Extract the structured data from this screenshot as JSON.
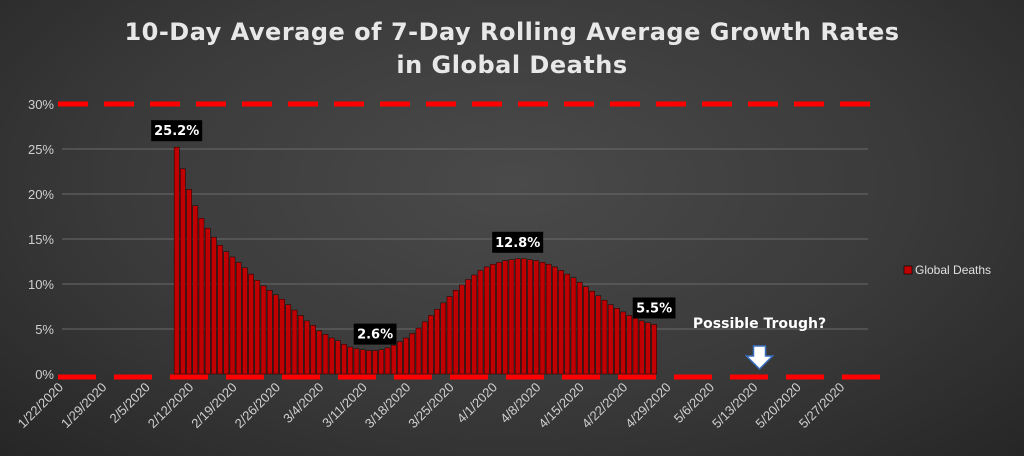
{
  "chart_data": {
    "type": "bar",
    "title_line1": "10-Day Average of 7-Day Rolling Average Growth Rates",
    "title_line2": "in Global Deaths",
    "xlabel": "",
    "ylabel": "",
    "ylim": [
      0,
      30
    ],
    "yticks": [
      "0%",
      "5%",
      "10%",
      "15%",
      "20%",
      "25%",
      "30%"
    ],
    "xticks": [
      "1/22/2020",
      "1/29/2020",
      "2/5/2020",
      "2/12/2020",
      "2/19/2020",
      "2/26/2020",
      "3/4/2020",
      "3/11/2020",
      "3/18/2020",
      "3/25/2020",
      "4/1/2020",
      "4/8/2020",
      "4/15/2020",
      "4/22/2020",
      "4/29/2020",
      "5/6/2020",
      "5/13/2020",
      "5/20/2020",
      "5/27/2020"
    ],
    "grid": true,
    "legend_position": "right",
    "series": [
      {
        "name": "Global Deaths",
        "color": "#c00000",
        "start_date": "2/9/2020",
        "values": [
          25.2,
          22.8,
          20.5,
          18.7,
          17.3,
          16.2,
          15.2,
          14.3,
          13.6,
          13.0,
          12.4,
          11.8,
          11.1,
          10.4,
          9.8,
          9.3,
          8.8,
          8.3,
          7.7,
          7.1,
          6.5,
          5.9,
          5.4,
          4.8,
          4.4,
          4.0,
          3.7,
          3.3,
          3.0,
          2.8,
          2.7,
          2.6,
          2.6,
          2.7,
          2.9,
          3.2,
          3.6,
          4.0,
          4.5,
          5.1,
          5.8,
          6.5,
          7.2,
          7.9,
          8.6,
          9.3,
          9.9,
          10.5,
          11.0,
          11.5,
          11.9,
          12.2,
          12.4,
          12.6,
          12.7,
          12.8,
          12.8,
          12.7,
          12.6,
          12.4,
          12.2,
          11.9,
          11.5,
          11.1,
          10.7,
          10.2,
          9.7,
          9.2,
          8.7,
          8.2,
          7.7,
          7.3,
          6.9,
          6.5,
          6.2,
          5.9,
          5.7,
          5.5
        ]
      }
    ],
    "data_labels": [
      {
        "text": "25.2%",
        "date": "2/9/2020",
        "value": 25.2
      },
      {
        "text": "2.6%",
        "date": "3/12/2020",
        "value": 2.6
      },
      {
        "text": "12.8%",
        "date": "4/4/2020",
        "value": 12.8
      },
      {
        "text": "5.5%",
        "date": "4/26/2020",
        "value": 5.5
      }
    ],
    "reference_lines": [
      {
        "value": 30,
        "color": "#ff0000",
        "style": "dashed"
      },
      {
        "value": 0,
        "color": "#ff0000",
        "style": "dashed"
      }
    ],
    "annotation": {
      "text": "Possible Trough?",
      "date": "5/13/2020",
      "arrow": "down"
    }
  }
}
